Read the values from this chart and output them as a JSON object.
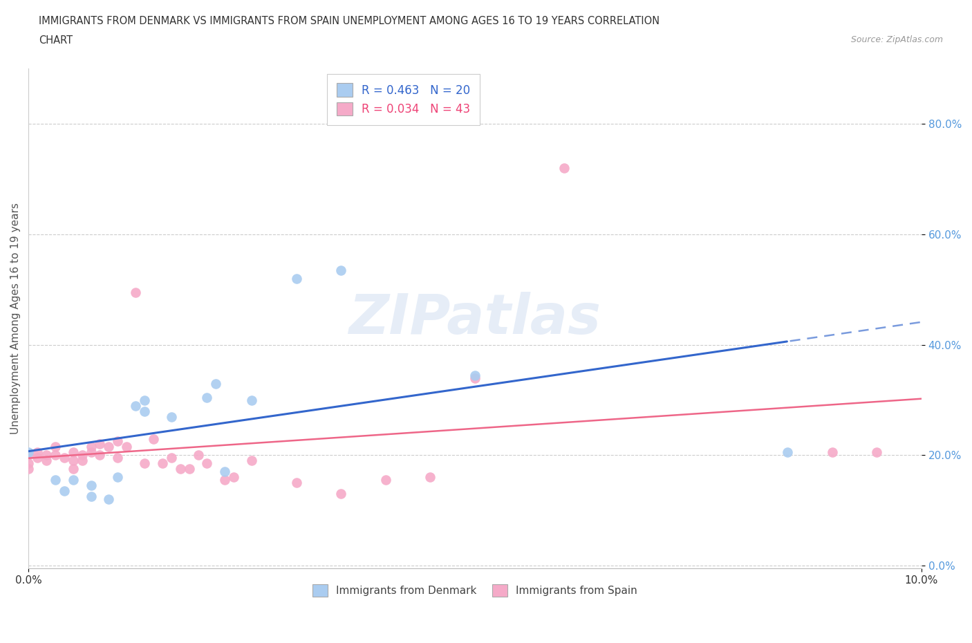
{
  "title_line1": "IMMIGRANTS FROM DENMARK VS IMMIGRANTS FROM SPAIN UNEMPLOYMENT AMONG AGES 16 TO 19 YEARS CORRELATION",
  "title_line2": "CHART",
  "source": "Source: ZipAtlas.com",
  "ylabel": "Unemployment Among Ages 16 to 19 years",
  "xlim": [
    0.0,
    0.1
  ],
  "ylim": [
    -0.005,
    0.9
  ],
  "ytick_vals": [
    0.0,
    0.2,
    0.4,
    0.6,
    0.8
  ],
  "xtick_vals": [
    0.0,
    0.1
  ],
  "xtick_labels": [
    "0.0%",
    "10.0%"
  ],
  "denmark_R": 0.463,
  "denmark_N": 20,
  "spain_R": 0.034,
  "spain_N": 43,
  "denmark_color": "#aaccf0",
  "spain_color": "#f5aac8",
  "denmark_line_color": "#3366cc",
  "spain_line_color": "#ee6688",
  "watermark_text": "ZIPatlas",
  "denmark_x": [
    0.0,
    0.003,
    0.004,
    0.005,
    0.007,
    0.007,
    0.009,
    0.01,
    0.012,
    0.013,
    0.013,
    0.016,
    0.02,
    0.021,
    0.022,
    0.025,
    0.03,
    0.035,
    0.05,
    0.085
  ],
  "denmark_y": [
    0.205,
    0.155,
    0.135,
    0.155,
    0.145,
    0.125,
    0.12,
    0.16,
    0.29,
    0.3,
    0.28,
    0.27,
    0.305,
    0.33,
    0.17,
    0.3,
    0.52,
    0.535,
    0.345,
    0.205
  ],
  "spain_x": [
    0.0,
    0.0,
    0.0,
    0.001,
    0.001,
    0.002,
    0.002,
    0.003,
    0.003,
    0.004,
    0.005,
    0.005,
    0.005,
    0.006,
    0.006,
    0.007,
    0.007,
    0.008,
    0.008,
    0.009,
    0.01,
    0.01,
    0.011,
    0.012,
    0.013,
    0.014,
    0.015,
    0.016,
    0.017,
    0.018,
    0.019,
    0.02,
    0.022,
    0.023,
    0.025,
    0.03,
    0.035,
    0.04,
    0.045,
    0.05,
    0.06,
    0.09,
    0.095
  ],
  "spain_y": [
    0.2,
    0.185,
    0.175,
    0.205,
    0.195,
    0.2,
    0.19,
    0.215,
    0.2,
    0.195,
    0.205,
    0.19,
    0.175,
    0.2,
    0.19,
    0.215,
    0.205,
    0.22,
    0.2,
    0.215,
    0.225,
    0.195,
    0.215,
    0.495,
    0.185,
    0.23,
    0.185,
    0.195,
    0.175,
    0.175,
    0.2,
    0.185,
    0.155,
    0.16,
    0.19,
    0.15,
    0.13,
    0.155,
    0.16,
    0.34,
    0.72,
    0.205,
    0.205
  ]
}
